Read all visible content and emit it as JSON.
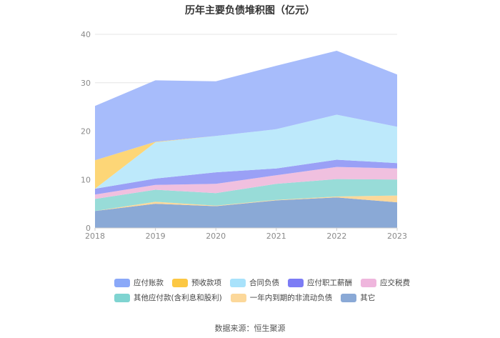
{
  "chart_data": {
    "type": "area",
    "stacked": true,
    "title": "历年主要负债堆积图（亿元）",
    "x": [
      "2018",
      "2019",
      "2020",
      "2021",
      "2022",
      "2023"
    ],
    "ylim": [
      0,
      40
    ],
    "yticks": [
      0,
      10,
      20,
      30,
      40
    ],
    "grid": true,
    "legend_position": "bottom",
    "series": [
      {
        "name": "其它",
        "color": "#8aa9d6",
        "values": [
          3.5,
          5.0,
          4.5,
          5.7,
          6.3,
          5.3
        ]
      },
      {
        "name": "一年内到期的非流动负债",
        "color": "#fcd89a",
        "values": [
          0.0,
          0.4,
          0.1,
          0.1,
          0.2,
          1.4
        ]
      },
      {
        "name": "其他应付款(含利息和股利)",
        "color": "#98dcd8",
        "values": [
          2.5,
          2.5,
          2.6,
          3.3,
          3.6,
          3.3
        ]
      },
      {
        "name": "应交税费",
        "color": "#f0c0df",
        "values": [
          0.9,
          1.0,
          1.9,
          1.8,
          2.5,
          2.3
        ]
      },
      {
        "name": "应付职工薪酬",
        "color": "#9aa0f6",
        "values": [
          1.2,
          1.3,
          2.4,
          1.4,
          1.5,
          1.1
        ]
      },
      {
        "name": "合同负债",
        "color": "#bde9fb",
        "values": [
          0.0,
          7.5,
          7.5,
          8.1,
          9.3,
          7.5
        ]
      },
      {
        "name": "预收款项",
        "color": "#fdd677",
        "values": [
          5.9,
          0.1,
          0.0,
          0.0,
          0.0,
          0.0
        ]
      },
      {
        "name": "应付账款",
        "color": "#a7bcfb",
        "values": [
          11.2,
          12.7,
          11.3,
          13.1,
          13.2,
          10.8
        ]
      }
    ],
    "legend_order": [
      "应付账款",
      "预收款项",
      "合同负债",
      "应付职工薪酬",
      "应交税费",
      "其他应付款(含利息和股利)",
      "一年内到期的非流动负债",
      "其它"
    ],
    "legend_colors": [
      "#8aa8f8",
      "#fcc844",
      "#a8e2fb",
      "#7c7cf5",
      "#efb6dd",
      "#7fd4d1",
      "#fcd89a",
      "#8aa9d6"
    ]
  },
  "source": "数据来源：恒生聚源"
}
